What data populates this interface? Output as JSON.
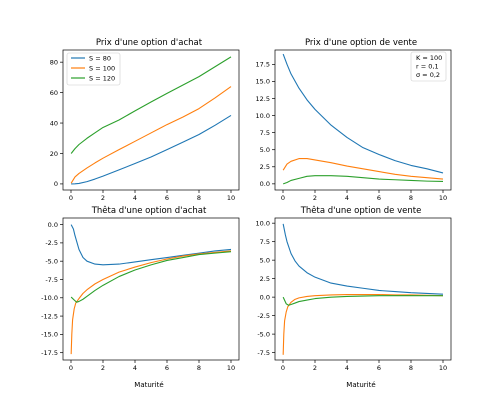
{
  "colors": {
    "s80": "#1f77b4",
    "s100": "#ff7f0e",
    "s120": "#2ca02c"
  },
  "chart_data": [
    {
      "type": "line",
      "title": "Prix d'une option d'achat",
      "xlabel": "",
      "xlim": [
        -0.5,
        10.5
      ],
      "ylim": [
        -4,
        88
      ],
      "xticks": [
        "0",
        "2",
        "4",
        "6",
        "8",
        "10"
      ],
      "yticks": [
        "0",
        "20",
        "40",
        "60",
        "80"
      ],
      "legend": "top-left",
      "series": [
        {
          "name": "S = 80",
          "x": [
            0.01,
            0.25,
            0.5,
            1,
            1.5,
            2,
            3,
            4,
            5,
            6,
            7,
            8,
            9,
            10
          ],
          "y": [
            0,
            0.05,
            0.3,
            1.5,
            3.2,
            5.1,
            9.2,
            13.4,
            17.7,
            22.5,
            27.5,
            32.5,
            38.5,
            45.0
          ]
        },
        {
          "name": "S = 100",
          "x": [
            0.01,
            0.25,
            0.5,
            1,
            1.5,
            2,
            3,
            4,
            5,
            6,
            7,
            8,
            9,
            10
          ],
          "y": [
            0.5,
            4.6,
            6.9,
            10.5,
            13.8,
            16.9,
            22.5,
            28.0,
            33.5,
            39.0,
            44.0,
            49.5,
            56.5,
            64.0
          ]
        },
        {
          "name": "S = 120",
          "x": [
            0.01,
            0.25,
            0.5,
            1,
            1.5,
            2,
            3,
            4,
            5,
            6,
            7,
            8,
            9,
            10
          ],
          "y": [
            20.0,
            23.2,
            25.9,
            30.0,
            33.6,
            37.1,
            42.0,
            48.0,
            53.8,
            59.5,
            65.0,
            70.5,
            77.0,
            83.5
          ]
        }
      ]
    },
    {
      "type": "line",
      "title": "Prix d'une option de vente",
      "xlabel": "",
      "xlim": [
        -0.5,
        10.5
      ],
      "ylim": [
        -0.9,
        19.6
      ],
      "xticks": [
        "0",
        "2",
        "4",
        "6",
        "8",
        "10"
      ],
      "yticks": [
        "0.0",
        "2.5",
        "5.0",
        "7.5",
        "10.0",
        "12.5",
        "15.0",
        "17.5"
      ],
      "annotation": [
        "K = 100",
        "r = 0,1",
        "σ = 0,2"
      ],
      "series": [
        {
          "name": "S = 80",
          "x": [
            0.01,
            0.25,
            0.5,
            1,
            1.5,
            2,
            3,
            4,
            5,
            6,
            7,
            8,
            9,
            10
          ],
          "y": [
            19.0,
            17.5,
            16.1,
            14.0,
            12.3,
            10.9,
            8.6,
            6.8,
            5.3,
            4.3,
            3.4,
            2.7,
            2.2,
            1.6
          ]
        },
        {
          "name": "S = 100",
          "x": [
            0.01,
            0.25,
            0.5,
            1,
            1.5,
            2,
            3,
            4,
            5,
            6,
            7,
            8,
            9,
            10
          ],
          "y": [
            2.0,
            2.9,
            3.3,
            3.7,
            3.7,
            3.5,
            3.1,
            2.6,
            2.2,
            1.8,
            1.4,
            1.1,
            0.9,
            0.7
          ]
        },
        {
          "name": "S = 120",
          "x": [
            0.01,
            0.25,
            0.5,
            1,
            1.5,
            2,
            3,
            4,
            5,
            6,
            7,
            8,
            9,
            10
          ],
          "y": [
            0.0,
            0.2,
            0.5,
            0.8,
            1.1,
            1.2,
            1.2,
            1.1,
            0.9,
            0.7,
            0.6,
            0.5,
            0.4,
            0.35
          ]
        }
      ]
    },
    {
      "type": "line",
      "title": "Thêta d'une option d'achat",
      "xlabel": "Maturité",
      "xlim": [
        -0.5,
        10.5
      ],
      "ylim": [
        -18.5,
        0.9
      ],
      "xticks": [
        "0",
        "2",
        "4",
        "6",
        "8",
        "10"
      ],
      "yticks": [
        "-17.5",
        "-15.0",
        "-12.5",
        "-10.0",
        "-7.5",
        "-5.0",
        "-2.5",
        "0.0"
      ],
      "series": [
        {
          "name": "S = 80",
          "x": [
            0.01,
            0.15,
            0.25,
            0.5,
            0.75,
            1,
            1.5,
            2,
            3,
            4,
            5,
            6,
            7,
            8,
            9,
            10
          ],
          "y": [
            0.0,
            -0.6,
            -1.5,
            -3.4,
            -4.5,
            -5.0,
            -5.4,
            -5.5,
            -5.4,
            -5.1,
            -4.8,
            -4.5,
            -4.2,
            -3.9,
            -3.6,
            -3.4
          ]
        },
        {
          "name": "S = 100",
          "x": [
            0.01,
            0.05,
            0.1,
            0.2,
            0.3,
            0.5,
            0.75,
            1,
            1.5,
            2,
            3,
            4,
            5,
            6,
            7,
            8,
            9,
            10
          ],
          "y": [
            -17.7,
            -15.0,
            -13.0,
            -11.5,
            -10.7,
            -10.1,
            -9.4,
            -8.9,
            -8.1,
            -7.5,
            -6.5,
            -5.8,
            -5.2,
            -4.7,
            -4.3,
            -4.0,
            -3.8,
            -3.6
          ]
        },
        {
          "name": "S = 120",
          "x": [
            0.01,
            0.2,
            0.35,
            0.5,
            0.75,
            1,
            1.5,
            2,
            3,
            4,
            5,
            6,
            7,
            8,
            9,
            10
          ],
          "y": [
            -9.9,
            -10.3,
            -10.6,
            -10.5,
            -10.2,
            -9.8,
            -9.0,
            -8.3,
            -7.1,
            -6.2,
            -5.5,
            -4.9,
            -4.5,
            -4.1,
            -3.9,
            -3.7
          ]
        }
      ]
    },
    {
      "type": "line",
      "title": "Thêta d'une option de vente",
      "xlabel": "Maturité",
      "xlim": [
        -0.5,
        10.5
      ],
      "ylim": [
        -8.5,
        10.7
      ],
      "xticks": [
        "0",
        "2",
        "4",
        "6",
        "8",
        "10"
      ],
      "yticks": [
        "-7.5",
        "-5.0",
        "-2.5",
        "0.0",
        "2.5",
        "5.0",
        "7.5",
        "10.0"
      ],
      "series": [
        {
          "name": "S = 80",
          "x": [
            0.01,
            0.15,
            0.25,
            0.5,
            0.75,
            1,
            1.5,
            2,
            3,
            4,
            5,
            6,
            7,
            8,
            9,
            10
          ],
          "y": [
            9.9,
            8.4,
            7.5,
            5.9,
            4.9,
            4.2,
            3.3,
            2.7,
            1.9,
            1.5,
            1.2,
            0.9,
            0.75,
            0.6,
            0.5,
            0.4
          ]
        },
        {
          "name": "S = 100",
          "x": [
            0.01,
            0.05,
            0.1,
            0.2,
            0.3,
            0.5,
            0.75,
            1,
            1.5,
            2,
            3,
            4,
            5,
            6,
            7,
            8,
            9,
            10
          ],
          "y": [
            -7.8,
            -5.0,
            -3.2,
            -2.0,
            -1.3,
            -0.7,
            -0.3,
            -0.1,
            0.1,
            0.2,
            0.3,
            0.35,
            0.35,
            0.35,
            0.3,
            0.3,
            0.25,
            0.2
          ]
        },
        {
          "name": "S = 120",
          "x": [
            0.01,
            0.2,
            0.35,
            0.5,
            0.75,
            1,
            1.5,
            2,
            3,
            4,
            5,
            6,
            7,
            8,
            9,
            10
          ],
          "y": [
            0.0,
            -0.9,
            -1.1,
            -1.0,
            -0.8,
            -0.6,
            -0.4,
            -0.2,
            0.0,
            0.1,
            0.15,
            0.2,
            0.2,
            0.2,
            0.2,
            0.2
          ]
        }
      ]
    }
  ]
}
